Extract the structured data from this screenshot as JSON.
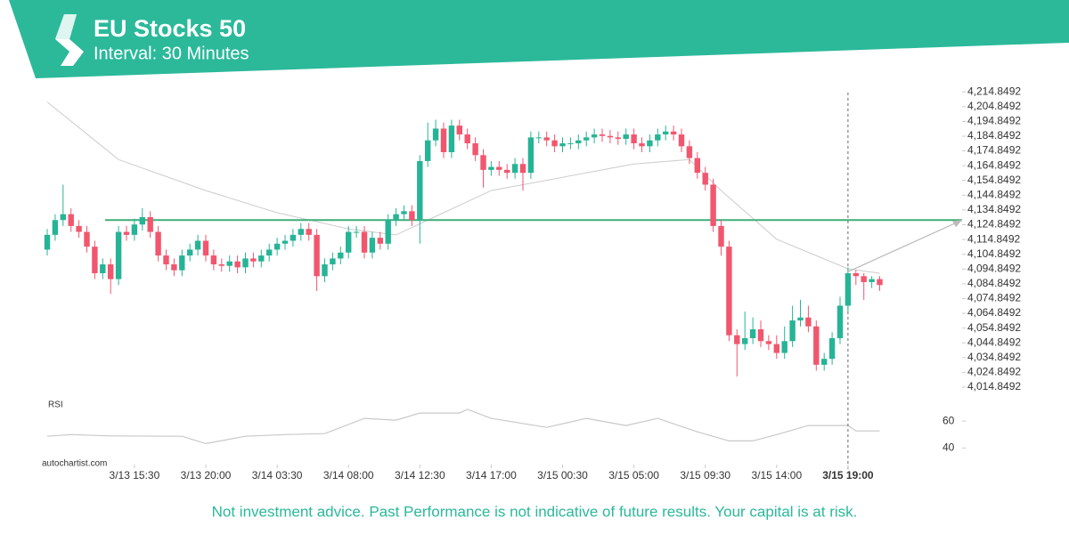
{
  "header": {
    "title": "EU Stocks 50",
    "subtitle": "Interval: 30 Minutes"
  },
  "chart_data": {
    "type": "candlestick",
    "categories": [
      null,
      null,
      null,
      null,
      null,
      null,
      null,
      null,
      null,
      null,
      null,
      "3/13 15:30",
      null,
      null,
      null,
      null,
      null,
      null,
      null,
      null,
      "3/13 20:00",
      null,
      null,
      null,
      null,
      null,
      null,
      null,
      null,
      "3/14 03:30",
      null,
      null,
      null,
      null,
      null,
      null,
      null,
      null,
      "3/14 08:00",
      null,
      null,
      null,
      null,
      null,
      null,
      null,
      null,
      "3/14 12:30",
      null,
      null,
      null,
      null,
      null,
      null,
      null,
      null,
      "3/14 17:00",
      null,
      null,
      null,
      null,
      null,
      null,
      null,
      null,
      "3/15 00:30",
      null,
      null,
      null,
      null,
      null,
      null,
      null,
      null,
      "3/15 05:00",
      null,
      null,
      null,
      null,
      null,
      null,
      null,
      null,
      "3/15 09:30",
      null,
      null,
      null,
      null,
      null,
      null,
      null,
      null,
      "3/15 14:00",
      null,
      null,
      null,
      null,
      null,
      null,
      null,
      null,
      "3/15 19:00",
      null,
      null,
      null,
      null
    ],
    "open": [
      4108,
      4118,
      4128,
      4132,
      4124,
      4120,
      4110,
      4092,
      4098,
      4088,
      4120,
      4118,
      4125,
      4130,
      4120,
      4104,
      4098,
      4094,
      4104,
      4108,
      4114,
      4104,
      4098,
      4097,
      4100,
      4096,
      4102,
      4100,
      4104,
      4108,
      4112,
      4114,
      4118,
      4122,
      4118,
      4090,
      4098,
      4102,
      4106,
      4120,
      4120,
      4106,
      4116,
      4112,
      4128,
      4132,
      4134,
      4128,
      4168,
      4182,
      4190,
      4174,
      4192,
      4186,
      4180,
      4172,
      4162,
      4164,
      4162,
      4160,
      4166,
      4160,
      4184,
      4184,
      4182,
      4178,
      4180,
      4180,
      4182,
      4184,
      4186,
      4185,
      4184,
      4183,
      4186,
      4180,
      4178,
      4182,
      4186,
      4188,
      4186,
      4178,
      4170,
      4160,
      4152,
      4124,
      4110,
      4050,
      4044,
      4048,
      4054,
      4046,
      4044,
      4038,
      4046,
      4060,
      4062,
      4056,
      4030,
      4034,
      4048,
      4070,
      4092,
      4090,
      4086,
      4088
    ],
    "high": [
      4122,
      4132,
      4152,
      4136,
      4128,
      4124,
      4114,
      4102,
      4102,
      4124,
      4124,
      4129,
      4136,
      4134,
      4124,
      4108,
      4102,
      4108,
      4112,
      4118,
      4118,
      4108,
      4102,
      4104,
      4104,
      4106,
      4106,
      4108,
      4112,
      4116,
      4118,
      4122,
      4126,
      4126,
      4122,
      4102,
      4106,
      4110,
      4124,
      4124,
      4124,
      4120,
      4120,
      4132,
      4136,
      4138,
      4138,
      4172,
      4194,
      4196,
      4194,
      4196,
      4196,
      4190,
      4184,
      4176,
      4168,
      4168,
      4166,
      4170,
      4170,
      4188,
      4188,
      4188,
      4186,
      4184,
      4184,
      4186,
      4188,
      4190,
      4190,
      4189,
      4188,
      4190,
      4190,
      4184,
      4186,
      4190,
      4192,
      4192,
      4190,
      4182,
      4174,
      4164,
      4156,
      4128,
      4114,
      4054,
      4066,
      4062,
      4060,
      4050,
      4050,
      4056,
      4070,
      4074,
      4070,
      4060,
      4038,
      4052,
      4076,
      4096,
      4094,
      4092,
      4090,
      4090
    ],
    "low": [
      4104,
      4114,
      4124,
      4120,
      4116,
      4106,
      4088,
      4088,
      4078,
      4084,
      4114,
      4114,
      4121,
      4116,
      4100,
      4094,
      4090,
      4090,
      4100,
      4104,
      4100,
      4094,
      4093,
      4093,
      4092,
      4092,
      4096,
      4096,
      4100,
      4104,
      4108,
      4110,
      4114,
      4114,
      4080,
      4086,
      4094,
      4098,
      4102,
      4116,
      4102,
      4102,
      4108,
      4108,
      4124,
      4128,
      4124,
      4112,
      4164,
      4178,
      4170,
      4170,
      4182,
      4176,
      4168,
      4150,
      4158,
      4158,
      4156,
      4156,
      4148,
      4156,
      4180,
      4178,
      4174,
      4174,
      4176,
      4176,
      4178,
      4180,
      4181,
      4180,
      4179,
      4179,
      4176,
      4174,
      4174,
      4178,
      4182,
      4182,
      4174,
      4166,
      4156,
      4148,
      4120,
      4104,
      4046,
      4022,
      4040,
      4044,
      4042,
      4040,
      4034,
      4034,
      4042,
      4056,
      4052,
      4026,
      4026,
      4030,
      4044,
      4066,
      4084,
      4074,
      4082,
      4080
    ],
    "close": [
      4118,
      4128,
      4132,
      4124,
      4120,
      4110,
      4092,
      4098,
      4088,
      4120,
      4118,
      4125,
      4130,
      4120,
      4104,
      4098,
      4094,
      4104,
      4108,
      4114,
      4104,
      4098,
      4097,
      4100,
      4096,
      4102,
      4100,
      4104,
      4108,
      4112,
      4114,
      4118,
      4122,
      4118,
      4090,
      4098,
      4102,
      4106,
      4120,
      4120,
      4106,
      4116,
      4112,
      4128,
      4132,
      4134,
      4128,
      4168,
      4182,
      4190,
      4174,
      4192,
      4186,
      4180,
      4172,
      4162,
      4164,
      4162,
      4160,
      4166,
      4160,
      4184,
      4184,
      4182,
      4178,
      4180,
      4180,
      4182,
      4184,
      4186,
      4185,
      4184,
      4183,
      4186,
      4180,
      4178,
      4182,
      4186,
      4188,
      4186,
      4178,
      4170,
      4160,
      4152,
      4124,
      4110,
      4050,
      4044,
      4048,
      4054,
      4046,
      4044,
      4038,
      4046,
      4060,
      4062,
      4056,
      4030,
      4034,
      4048,
      4070,
      4092,
      4090,
      4086,
      4088,
      4084
    ],
    "up_color": "#26b496",
    "down_color": "#f1566e",
    "moving_average": {
      "x": [
        0,
        9,
        20,
        29,
        38,
        44,
        50,
        56,
        65,
        74,
        81,
        85,
        92,
        101,
        105
      ],
      "values": [
        4208,
        4169,
        4148,
        4133,
        4122,
        4118,
        4133,
        4148,
        4157,
        4166,
        4169,
        4148,
        4115,
        4095,
        4092
      ],
      "color": "#cccccc"
    },
    "level": 4128,
    "level_color": "#3fae78",
    "projection": {
      "from_index": 101,
      "from_value": 4093,
      "to_value": 4128,
      "color": "#bbbbbb"
    },
    "marker_index": 101,
    "ylim": [
      4010,
      4218
    ],
    "yticks": [
      {
        "value": 4214.8492,
        "label": "4,214.8492"
      },
      {
        "value": 4204.8492,
        "label": "4,204.8492"
      },
      {
        "value": 4194.8492,
        "label": "4,194.8492"
      },
      {
        "value": 4184.8492,
        "label": "4,184.8492"
      },
      {
        "value": 4174.8492,
        "label": "4,174.8492"
      },
      {
        "value": 4164.8492,
        "label": "4,164.8492"
      },
      {
        "value": 4154.8492,
        "label": "4,154.8492"
      },
      {
        "value": 4144.8492,
        "label": "4,144.8492"
      },
      {
        "value": 4134.8492,
        "label": "4,134.8492"
      },
      {
        "value": 4124.8492,
        "label": "4,124.8492"
      },
      {
        "value": 4114.8492,
        "label": "4,114.8492"
      },
      {
        "value": 4104.8492,
        "label": "4,104.8492"
      },
      {
        "value": 4094.8492,
        "label": "4,094.8492"
      },
      {
        "value": 4084.8492,
        "label": "4,084.8492"
      },
      {
        "value": 4074.8492,
        "label": "4,074.8492"
      },
      {
        "value": 4064.8492,
        "label": "4,064.8492"
      },
      {
        "value": 4054.8492,
        "label": "4,054.8492"
      },
      {
        "value": 4044.8492,
        "label": "4,044.8492"
      },
      {
        "value": 4034.8492,
        "label": "4,034.8492"
      },
      {
        "value": 4024.8492,
        "label": "4,024.8492"
      },
      {
        "value": 4014.8492,
        "label": "4,014.8492"
      }
    ],
    "rsi": {
      "label": "RSI",
      "x": [
        0,
        3,
        8,
        17,
        20,
        25,
        30,
        35,
        40,
        44,
        47,
        52,
        53,
        56,
        63,
        68,
        73,
        77,
        82,
        86,
        89,
        92,
        96,
        98,
        101,
        102,
        105
      ],
      "values": [
        48.7,
        50,
        49,
        48.7,
        43.3,
        48.7,
        50,
        50.7,
        62,
        60.7,
        66,
        66,
        68.7,
        62,
        55.3,
        62,
        56.7,
        62,
        52,
        45.3,
        45.3,
        50,
        56.7,
        56.7,
        56.7,
        52.7,
        52.7
      ],
      "color": "#c8c8c8",
      "ylim": [
        33,
        70
      ],
      "yticks": [
        40,
        60
      ]
    }
  },
  "source": "autochartist.com",
  "footer": "Not investment advice. Past Performance is not indicative of future results. Your capital is at risk."
}
